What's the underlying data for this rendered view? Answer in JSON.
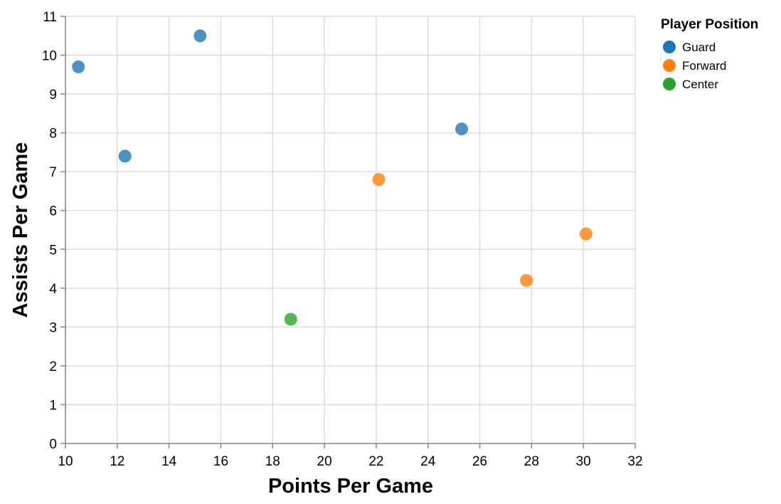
{
  "chart_data": {
    "type": "scatter",
    "xlabel": "Points Per Game",
    "ylabel": "Assists Per Game",
    "xlim": [
      10,
      32
    ],
    "ylim": [
      0,
      11
    ],
    "x_ticks": [
      10,
      12,
      14,
      16,
      18,
      20,
      22,
      24,
      26,
      28,
      30,
      32
    ],
    "y_ticks": [
      0,
      1,
      2,
      3,
      4,
      5,
      6,
      7,
      8,
      9,
      10,
      11
    ],
    "grid": true,
    "legend": {
      "title": "Player Position",
      "placement": "top-right"
    },
    "series": [
      {
        "name": "Guard",
        "color": "#1f77b4",
        "points": [
          {
            "x": 10.5,
            "y": 9.7
          },
          {
            "x": 12.3,
            "y": 7.4
          },
          {
            "x": 15.2,
            "y": 10.5
          },
          {
            "x": 25.3,
            "y": 8.1
          }
        ]
      },
      {
        "name": "Forward",
        "color": "#ff7f0e",
        "points": [
          {
            "x": 22.1,
            "y": 6.8
          },
          {
            "x": 27.8,
            "y": 4.2
          },
          {
            "x": 30.1,
            "y": 5.4
          }
        ]
      },
      {
        "name": "Center",
        "color": "#2ca02c",
        "points": [
          {
            "x": 18.7,
            "y": 3.2
          }
        ]
      }
    ]
  }
}
